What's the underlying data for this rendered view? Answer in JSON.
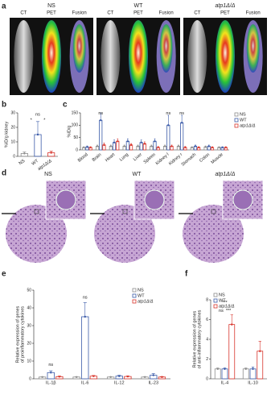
{
  "panel_labels": [
    "a",
    "b",
    "c",
    "d",
    "e",
    "f"
  ],
  "imaging": {
    "groups": [
      {
        "name": "NS",
        "views": [
          "CT",
          "PET",
          "Fusion"
        ]
      },
      {
        "name": "WT",
        "views": [
          "CT",
          "PET",
          "Fusion"
        ]
      },
      {
        "name": "atp1Δ/Δ",
        "views": [
          "CT",
          "PET",
          "Fusion"
        ]
      }
    ]
  },
  "histology": {
    "groups": [
      "NS",
      "WT",
      "atp1Δ/Δ"
    ]
  },
  "chart_data": [
    {
      "type": "bar",
      "ylabel": [
        "%ID/g kidney"
      ],
      "categories": [
        "NS",
        "WT",
        "atp1Δ/Δ"
      ],
      "values": [
        2,
        15,
        2.5
      ],
      "errors": [
        1,
        9,
        1
      ],
      "colors": [
        "#8c8c8c",
        "#3b5ba9",
        "#d8352c"
      ],
      "ylim": [
        0,
        30
      ],
      "yticks": [
        0,
        10,
        20,
        30
      ],
      "annotations": [
        "ns",
        "*",
        "*"
      ]
    },
    {
      "type": "bar",
      "ylabel": [
        "%ID/g"
      ],
      "categories": [
        "Blood",
        "Brain",
        "Heart",
        "Lung",
        "Liver",
        "Spleen",
        "Kidney l",
        "Kidney r",
        "Stomach",
        "Colon",
        "Muscle"
      ],
      "series": [
        {
          "name": "NS",
          "color": "#8c8c8c",
          "values": [
            10,
            15,
            15,
            15,
            15,
            15,
            15,
            15,
            10,
            12,
            10
          ],
          "errors": [
            3,
            5,
            5,
            5,
            5,
            5,
            5,
            5,
            3,
            4,
            3
          ]
        },
        {
          "name": "WT",
          "color": "#3b5ba9",
          "values": [
            12,
            120,
            30,
            35,
            30,
            35,
            100,
            110,
            15,
            15,
            10
          ],
          "errors": [
            4,
            30,
            10,
            10,
            10,
            10,
            40,
            30,
            5,
            5,
            3
          ]
        },
        {
          "name": "atp1Δ/Δ",
          "color": "#d8352c",
          "values": [
            10,
            20,
            35,
            20,
            25,
            10,
            15,
            10,
            10,
            10,
            10
          ],
          "errors": [
            3,
            8,
            10,
            6,
            8,
            4,
            5,
            4,
            3,
            3,
            3
          ]
        }
      ],
      "ylim": [
        0,
        150
      ],
      "yticks": [
        0,
        50,
        100,
        150
      ],
      "annotations": [
        "ns",
        "ns",
        "ns"
      ]
    },
    {
      "type": "bar",
      "ylabel": [
        "Relative expression of genes",
        "of proinflammatory cytokines"
      ],
      "categories": [
        "IL-1β",
        "IL-6",
        "IL-12",
        "IL-23"
      ],
      "series": [
        {
          "name": "NS",
          "color": "#8c8c8c",
          "values": [
            1,
            1,
            1,
            1
          ],
          "errors": [
            0.1,
            0.1,
            0.1,
            0.1
          ]
        },
        {
          "name": "WT",
          "color": "#3b5ba9",
          "values": [
            3.5,
            35,
            1.5,
            2
          ],
          "errors": [
            1,
            8,
            0.5,
            1
          ]
        },
        {
          "name": "atp1Δ/Δ",
          "color": "#d8352c",
          "values": [
            1.2,
            1.5,
            1.3,
            1
          ],
          "errors": [
            0.3,
            0.4,
            0.3,
            0.3
          ]
        }
      ],
      "ylim": [
        0,
        50
      ],
      "yticks": [
        0,
        10,
        20,
        30,
        40,
        50
      ],
      "annotations": [
        "ns",
        "ns"
      ]
    },
    {
      "type": "bar",
      "ylabel": [
        "Relative expression of genes",
        "of anti-inflammatory cytokines"
      ],
      "categories": [
        "IL-4",
        "IL-10"
      ],
      "series": [
        {
          "name": "NS",
          "color": "#8c8c8c",
          "values": [
            1,
            1
          ],
          "errors": [
            0.1,
            0.1
          ]
        },
        {
          "name": "WT",
          "color": "#3b5ba9",
          "values": [
            1,
            1
          ],
          "errors": [
            0.1,
            0.2
          ]
        },
        {
          "name": "atp1Δ/Δ",
          "color": "#d8352c",
          "values": [
            5.5,
            2.8
          ],
          "errors": [
            1,
            1
          ]
        }
      ],
      "ylim": [
        0,
        8
      ],
      "yticks": [
        0,
        2,
        4,
        6,
        8
      ],
      "annotations": [
        "***",
        "ns",
        "***"
      ]
    }
  ]
}
